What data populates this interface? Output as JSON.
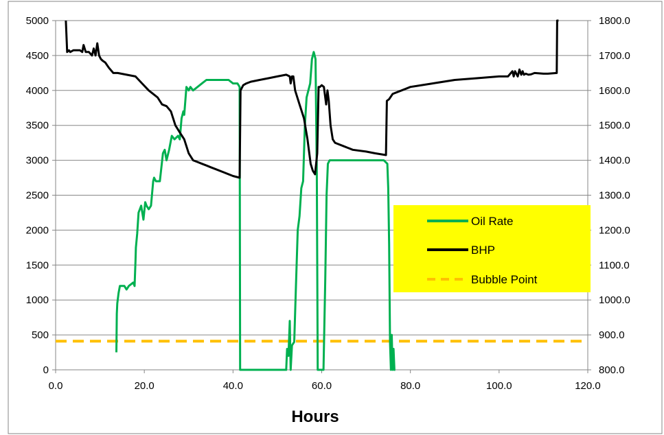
{
  "chart_data": {
    "type": "line",
    "title": "",
    "xlabel": "Hours",
    "ylabel": "",
    "y2label": "",
    "xlim": [
      0,
      120
    ],
    "ylim": [
      0,
      5000
    ],
    "y2lim": [
      800,
      1800
    ],
    "grid": true,
    "x_ticks": [
      "0.0",
      "20.0",
      "40.0",
      "60.0",
      "80.0",
      "100.0",
      "120.0"
    ],
    "y_ticks": [
      "0",
      "500",
      "1000",
      "1500",
      "2000",
      "2500",
      "3000",
      "3500",
      "4000",
      "4500",
      "5000"
    ],
    "y2_ticks": [
      "800.0",
      "900.0",
      "1000.0",
      "1100.0",
      "1200.0",
      "1300.0",
      "1400.0",
      "1500.0",
      "1600.0",
      "1700.0",
      "1800.0"
    ],
    "legend_position": "right",
    "series": [
      {
        "name": "Oil Rate",
        "axis": "left",
        "color": "#00b050",
        "style": "solid",
        "x": [
          13.7,
          13.8,
          13.9,
          14.2,
          14.5,
          15.5,
          16.0,
          16.5,
          17.5,
          17.8,
          18.0,
          18.1,
          18.4,
          18.7,
          19.0,
          19.3,
          19.8,
          20.2,
          20.5,
          21.0,
          21.5,
          22.0,
          22.2,
          22.6,
          23.5,
          24.2,
          24.6,
          25.0,
          25.6,
          26.2,
          26.8,
          27.6,
          28.0,
          28.4,
          28.8,
          29.0,
          29.5,
          30.0,
          30.4,
          31.0,
          32.0,
          33.0,
          34.0,
          35.0,
          36.0,
          37.0,
          38.0,
          39.0,
          40.0,
          41.0,
          41.5,
          41.6,
          42.0,
          44.0,
          46.0,
          48.0,
          50.0,
          52.0,
          52.2,
          52.5,
          52.8,
          53.0,
          53.3,
          53.8,
          54.2,
          54.6,
          55.0,
          55.4,
          55.8,
          56.2,
          56.6,
          57.0,
          57.4,
          57.8,
          58.2,
          58.6,
          58.9,
          59.1,
          59.3,
          59.6,
          60.0,
          60.4,
          60.8,
          61.1,
          61.4,
          61.8,
          62.2,
          62.6,
          63.0,
          64.0,
          65.0,
          66.0,
          68.0,
          70.0,
          72.0,
          74.0,
          74.8,
          75.0,
          75.2,
          75.4,
          75.6,
          75.8,
          76.0,
          76.2,
          76.4,
          76.6
        ],
        "y": [
          250,
          800,
          950,
          1100,
          1200,
          1200,
          1150,
          1200,
          1250,
          1200,
          1550,
          1750,
          1950,
          2250,
          2300,
          2350,
          2150,
          2400,
          2350,
          2300,
          2350,
          2700,
          2750,
          2700,
          2700,
          3100,
          3150,
          3000,
          3150,
          3350,
          3300,
          3350,
          3300,
          3600,
          3700,
          3650,
          4050,
          4000,
          4050,
          4000,
          4050,
          4100,
          4150,
          4150,
          4150,
          4150,
          4150,
          4150,
          4100,
          4100,
          4050,
          0,
          0,
          0,
          0,
          0,
          0,
          0,
          300,
          200,
          700,
          0,
          350,
          400,
          1200,
          2000,
          2200,
          2600,
          2700,
          3500,
          3900,
          4000,
          4100,
          4450,
          4550,
          4450,
          2800,
          0,
          0,
          0,
          0,
          0,
          1300,
          2500,
          2950,
          3000,
          3000,
          3000,
          3000,
          3000,
          3000,
          3000,
          3000,
          3000,
          3000,
          3000,
          2950,
          2600,
          1800,
          400,
          0,
          500,
          0,
          300,
          0,
          0
        ]
      },
      {
        "name": "BHP",
        "axis": "right",
        "color": "#000000",
        "style": "solid",
        "x": [
          2.3,
          2.6,
          3.0,
          3.3,
          4.0,
          5.5,
          6.0,
          6.3,
          6.8,
          7.5,
          8.2,
          8.6,
          9.0,
          9.4,
          9.8,
          10.2,
          10.6,
          11.2,
          12.0,
          13.0,
          14.0,
          16.0,
          18.0,
          19.5,
          21.0,
          22.0,
          23.0,
          24.0,
          25.0,
          26.0,
          27.0,
          28.0,
          29.0,
          30.0,
          31.0,
          32.0,
          33.0,
          34.0,
          35.0,
          36.0,
          38.0,
          40.0,
          41.5,
          41.7,
          42.3,
          43.0,
          44.0,
          46.0,
          48.0,
          50.0,
          52.0,
          52.8,
          53.0,
          53.3,
          53.6,
          54.0,
          55.0,
          56.0,
          56.8,
          57.5,
          58.0,
          58.5,
          59.0,
          59.3,
          59.6,
          60.0,
          60.5,
          61.0,
          61.3,
          61.6,
          62.0,
          62.5,
          63.0,
          65.0,
          67.0,
          70.0,
          72.0,
          74.5,
          74.7,
          75.2,
          76.0,
          78.0,
          80.0,
          85.0,
          90.0,
          95.0,
          100.0,
          102.0,
          103.0,
          103.3,
          103.6,
          104.2,
          104.6,
          105.0,
          105.3,
          105.6,
          106.0,
          106.6,
          107.2,
          108.0,
          110.0,
          111.0,
          113.0,
          113.1,
          113.4
        ],
        "y": [
          1800,
          1710,
          1715,
          1710,
          1715,
          1715,
          1710,
          1730,
          1710,
          1710,
          1700,
          1720,
          1700,
          1735,
          1700,
          1690,
          1685,
          1680,
          1665,
          1650,
          1650,
          1645,
          1640,
          1620,
          1600,
          1590,
          1580,
          1560,
          1555,
          1540,
          1500,
          1480,
          1460,
          1420,
          1400,
          1395,
          1390,
          1385,
          1380,
          1375,
          1365,
          1355,
          1350,
          1600,
          1615,
          1620,
          1625,
          1630,
          1635,
          1640,
          1645,
          1640,
          1620,
          1640,
          1640,
          1600,
          1560,
          1520,
          1460,
          1390,
          1370,
          1360,
          1420,
          1610,
          1610,
          1615,
          1610,
          1560,
          1600,
          1570,
          1500,
          1460,
          1450,
          1440,
          1430,
          1425,
          1420,
          1415,
          1570,
          1575,
          1590,
          1600,
          1610,
          1620,
          1630,
          1635,
          1640,
          1640,
          1655,
          1640,
          1655,
          1640,
          1660,
          1645,
          1655,
          1645,
          1648,
          1645,
          1646,
          1650,
          1648,
          1648,
          1650,
          1800,
          1800
        ]
      },
      {
        "name": "Bubble Point",
        "axis": "left",
        "color": "#ffc000",
        "style": "dashed",
        "x": [
          0,
          120
        ],
        "y": [
          410,
          410
        ]
      }
    ]
  }
}
